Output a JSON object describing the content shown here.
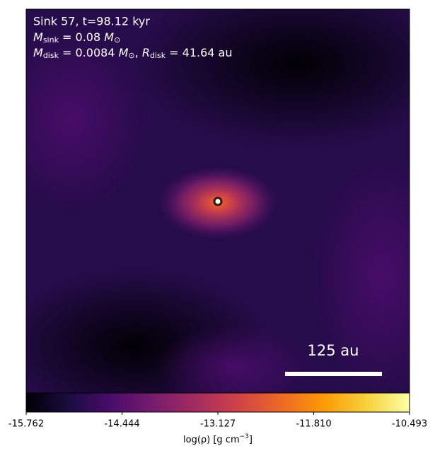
{
  "chart_data": {
    "type": "density-map",
    "annotations": {
      "title": "Sink 57, t=98.12 kyr",
      "m_sink_symbol": "M",
      "m_sink_sub": "sink",
      "m_sink_value": " = 0.08 ",
      "m_sink_unit": "M",
      "m_sink_unit_sub": "⊙",
      "m_disk_symbol": "M",
      "m_disk_sub": "disk",
      "m_disk_value": " = 0.0084 ",
      "m_disk_unit": "M",
      "m_disk_unit_sub": "⊙",
      "r_disk_sep": ", ",
      "r_disk_symbol": "R",
      "r_disk_sub": "disk",
      "r_disk_value": " = 41.64 au"
    },
    "scale_bar_label": "125 au",
    "cmap": "inferno",
    "clim": [
      -15.762,
      -10.493
    ],
    "cticks": [
      -15.762,
      -14.444,
      -13.127,
      {
        "value": -11.81,
        "label": "-11.810"
      },
      -10.493
    ],
    "colorbar_label": "log(ρ) [g cm",
    "colorbar_label_exp": "−3",
    "colorbar_label_end": "]"
  }
}
